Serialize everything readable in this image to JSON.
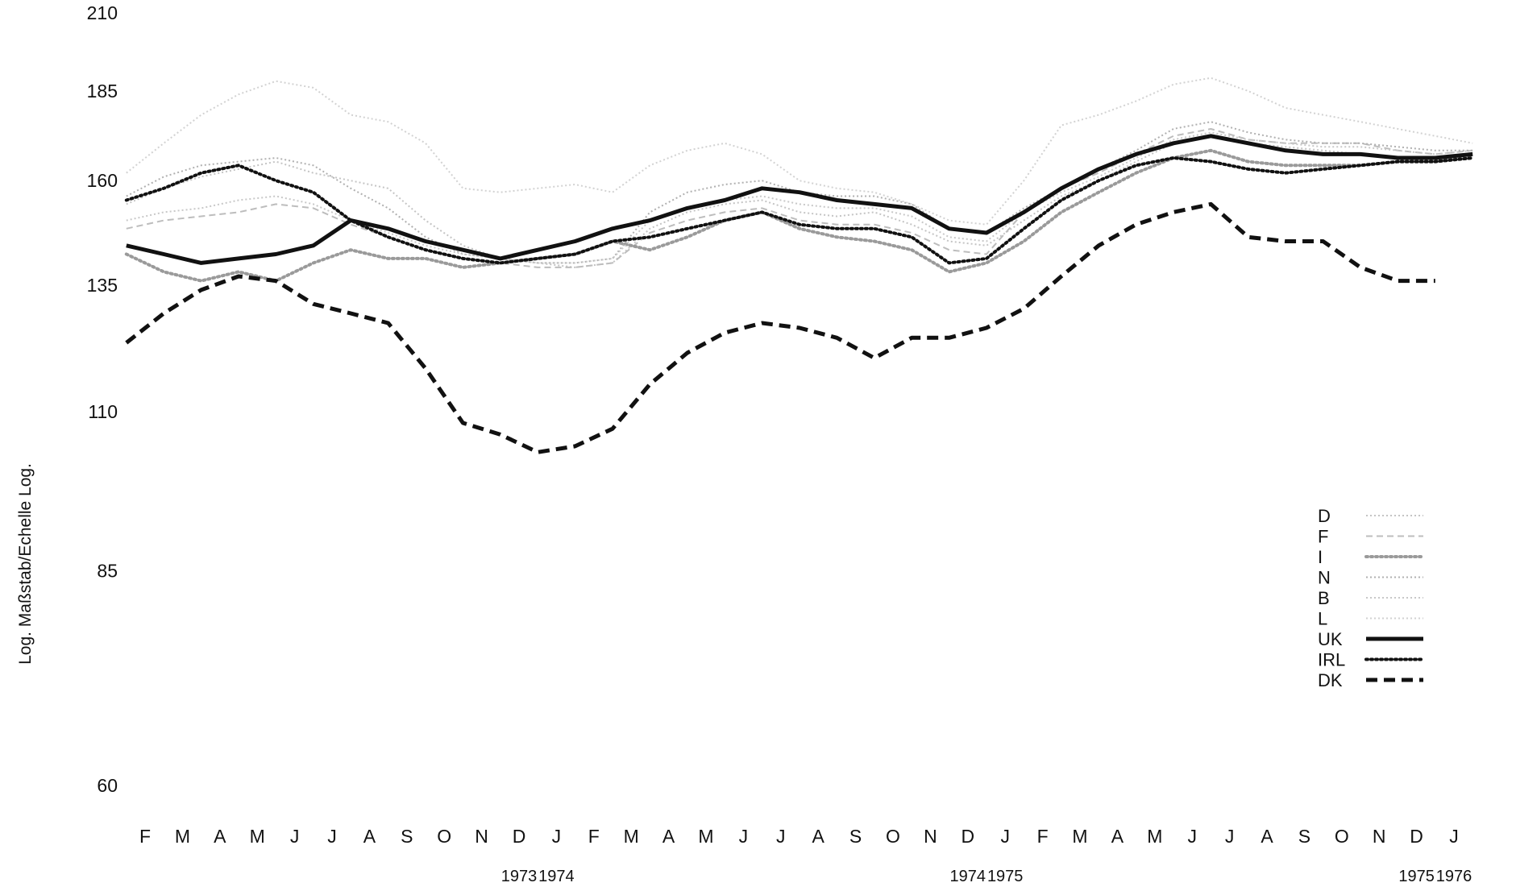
{
  "chart_data": {
    "type": "line",
    "title": "",
    "xlabel": "",
    "ylabel": "Log. Maßstab/Echelle Log.",
    "y_scale": "log",
    "ylim": [
      60,
      210
    ],
    "y_ticks": [
      210,
      185,
      160,
      135,
      110,
      85,
      60
    ],
    "grid": false,
    "legend_position": "bottom-right",
    "x_ticks": [
      "F",
      "M",
      "A",
      "M",
      "J",
      "J",
      "A",
      "S",
      "O",
      "N",
      "D",
      "J",
      "F",
      "M",
      "A",
      "M",
      "J",
      "J",
      "A",
      "S",
      "O",
      "N",
      "D",
      "J",
      "F",
      "M",
      "A",
      "M",
      "J",
      "J",
      "A",
      "S",
      "O",
      "N",
      "D",
      "J"
    ],
    "year_labels": [
      {
        "label": "1973",
        "after_tick": 10
      },
      {
        "label": "1974",
        "after_tick": 11
      },
      {
        "label": "1974",
        "after_tick": 22
      },
      {
        "label": "1975",
        "after_tick": 23
      },
      {
        "label": "1975",
        "after_tick": 34
      },
      {
        "label": "1976",
        "after_tick": 35
      }
    ],
    "legend": [
      {
        "name": "D",
        "style": "faint-dotted",
        "color": "#c4c4c4"
      },
      {
        "name": "F",
        "style": "faint-dashed",
        "color": "#bdbdbd"
      },
      {
        "name": "I",
        "style": "dotted",
        "color": "#9a9a9a"
      },
      {
        "name": "N",
        "style": "faint-dotted",
        "color": "#b0b0b0"
      },
      {
        "name": "B",
        "style": "faint-dotted",
        "color": "#c8c8c8"
      },
      {
        "name": "L",
        "style": "faint-dotted",
        "color": "#d2d2d2"
      },
      {
        "name": "UK",
        "style": "solid",
        "color": "#111111"
      },
      {
        "name": "IRL",
        "style": "dotted",
        "color": "#111111"
      },
      {
        "name": "DK",
        "style": "dashed",
        "color": "#111111"
      }
    ],
    "series": [
      {
        "name": "D",
        "x_start_tick": -0.5,
        "values": [
          154,
          158,
          161,
          163,
          165,
          162,
          160,
          158,
          150,
          144,
          141,
          140,
          139,
          140,
          148,
          152,
          154,
          155,
          152,
          151,
          152,
          149,
          145,
          144,
          150,
          156,
          160,
          165,
          170,
          172,
          170,
          169,
          168,
          167,
          166,
          165,
          166
        ]
      },
      {
        "name": "F",
        "x_start_tick": -0.5,
        "values": [
          148,
          150,
          151,
          152,
          154,
          153,
          149,
          146,
          143,
          141,
          140,
          139,
          139,
          140,
          147,
          150,
          152,
          153,
          150,
          149,
          149,
          147,
          143,
          142,
          152,
          158,
          162,
          167,
          172,
          174,
          171,
          170,
          170,
          170,
          168,
          167,
          168
        ]
      },
      {
        "name": "I",
        "x_start_tick": -0.5,
        "values": [
          142,
          138,
          136,
          138,
          136,
          140,
          143,
          141,
          141,
          139,
          140,
          141,
          142,
          145,
          143,
          146,
          150,
          152,
          148,
          146,
          145,
          143,
          138,
          140,
          145,
          152,
          157,
          162,
          166,
          168,
          165,
          164,
          164,
          164,
          165,
          165,
          166
        ]
      },
      {
        "name": "N",
        "x_start_tick": -0.5,
        "values": [
          156,
          161,
          164,
          165,
          166,
          164,
          158,
          153,
          146,
          142,
          141,
          140,
          140,
          141,
          152,
          157,
          159,
          160,
          157,
          156,
          156,
          154,
          148,
          147,
          153,
          158,
          163,
          168,
          174,
          176,
          173,
          171,
          170,
          170,
          169,
          168,
          168
        ]
      },
      {
        "name": "B",
        "x_start_tick": -0.5,
        "values": [
          150,
          152,
          153,
          155,
          156,
          154,
          150,
          147,
          144,
          142,
          141,
          140,
          140,
          141,
          150,
          153,
          155,
          156,
          154,
          153,
          153,
          151,
          146,
          145,
          152,
          157,
          161,
          166,
          171,
          173,
          171,
          170,
          169,
          169,
          168,
          167,
          168
        ]
      },
      {
        "name": "L",
        "x_start_tick": -0.5,
        "values": [
          162,
          170,
          178,
          184,
          188,
          186,
          178,
          176,
          170,
          158,
          157,
          158,
          159,
          157,
          164,
          168,
          170,
          167,
          160,
          158,
          157,
          154,
          150,
          149,
          160,
          175,
          178,
          182,
          187,
          189,
          185,
          180,
          178,
          176,
          174,
          172,
          170
        ]
      },
      {
        "name": "UK",
        "x_start_tick": -0.5,
        "values": [
          144,
          142,
          140,
          141,
          142,
          144,
          150,
          148,
          145,
          143,
          141,
          143,
          145,
          148,
          150,
          153,
          155,
          158,
          157,
          155,
          154,
          153,
          148,
          147,
          152,
          158,
          163,
          167,
          170,
          172,
          170,
          168,
          167,
          167,
          166,
          166,
          167
        ]
      },
      {
        "name": "IRL",
        "x_start_tick": -0.5,
        "values": [
          155,
          158,
          162,
          164,
          160,
          157,
          150,
          146,
          143,
          141,
          140,
          141,
          142,
          145,
          146,
          148,
          150,
          152,
          149,
          148,
          148,
          146,
          140,
          141,
          148,
          155,
          160,
          164,
          166,
          165,
          163,
          162,
          163,
          164,
          165,
          165,
          166
        ]
      },
      {
        "name": "DK",
        "x_start_tick": -0.5,
        "values": [
          123,
          129,
          134,
          137,
          136,
          131,
          129,
          127,
          118,
          108,
          106,
          103,
          104,
          107,
          115,
          121,
          125,
          127,
          126,
          124,
          120,
          124,
          124,
          126,
          130,
          137,
          144,
          149,
          152,
          154,
          146,
          145,
          145,
          139,
          136,
          136
        ]
      }
    ]
  }
}
